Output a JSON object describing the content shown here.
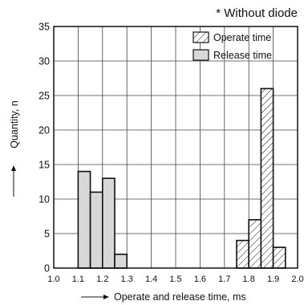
{
  "chart_data": {
    "type": "bar",
    "title": "* Without diode",
    "xlabel": "Operate and release time, ms",
    "ylabel": "Quantity, n",
    "xlim": [
      1.0,
      2.0
    ],
    "ylim": [
      0,
      35
    ],
    "x_ticks": [
      "1.0",
      "1.1",
      "1.2",
      "1.3",
      "1.4",
      "1.5",
      "1.6",
      "1.7",
      "1.8",
      "1.9",
      "2.0"
    ],
    "y_ticks": [
      "0",
      "5",
      "10",
      "15",
      "20",
      "25",
      "30",
      "35"
    ],
    "grid": true,
    "legend_position": "top-right",
    "series": [
      {
        "name": "Operate time",
        "style": "hatched",
        "bin_width": 0.05,
        "bin_starts": [
          1.75,
          1.8,
          1.85,
          1.9
        ],
        "values": [
          4,
          7,
          26,
          3
        ]
      },
      {
        "name": "Release time",
        "style": "gray-fill",
        "color": "#d8d8d8",
        "bin_width": 0.05,
        "bin_starts": [
          1.1,
          1.15,
          1.2,
          1.25
        ],
        "values": [
          14,
          11,
          13,
          2
        ]
      }
    ]
  }
}
